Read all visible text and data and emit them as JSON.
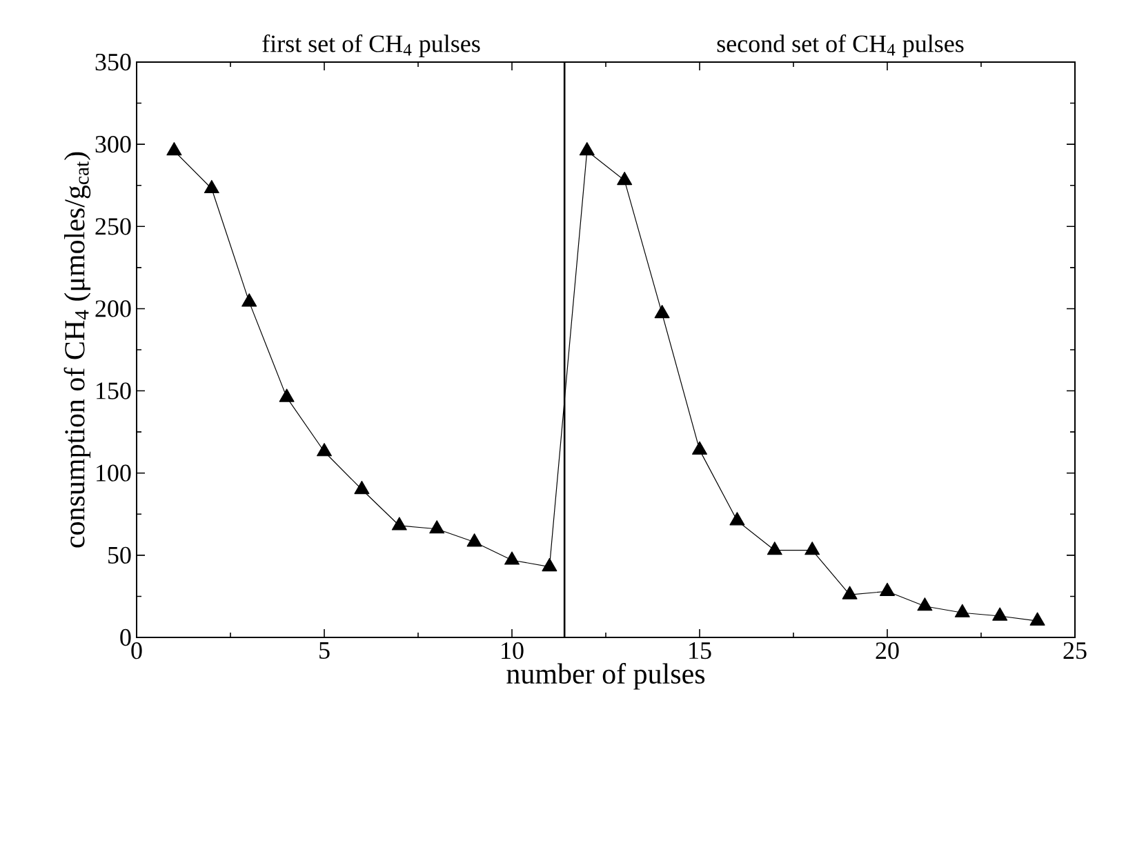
{
  "chart_data": {
    "type": "line",
    "xlabel": "number of pulses",
    "ylabel": "consumption of CH$_{4}$ (μmoles/g$_{cat}$)",
    "annotations": [
      "first set of CH$_{4}$ pulses",
      "second set of CH$_{4}$ pulses"
    ],
    "x": [
      1,
      2,
      3,
      4,
      5,
      6,
      7,
      8,
      9,
      10,
      11,
      12,
      13,
      14,
      15,
      16,
      17,
      18,
      19,
      20,
      21,
      22,
      23,
      24
    ],
    "series": [
      {
        "color": "#000000",
        "values": [
          296,
          273,
          204,
          146,
          113,
          90,
          68,
          66,
          58,
          47,
          43,
          296,
          278,
          197,
          114,
          71,
          53,
          53,
          26,
          28,
          19,
          15,
          13,
          10
        ]
      }
    ],
    "marker": "triangle",
    "line_style": "solid",
    "ref_lines": [
      {
        "axis": "x",
        "value": 11.4,
        "color": "#000000"
      }
    ],
    "xlim": [
      0,
      25
    ],
    "xticks": [
      0,
      5,
      10,
      15,
      20,
      25
    ],
    "ylim": [
      0,
      350
    ],
    "yticks": [
      0,
      50,
      100,
      150,
      200,
      250,
      300,
      350
    ]
  }
}
